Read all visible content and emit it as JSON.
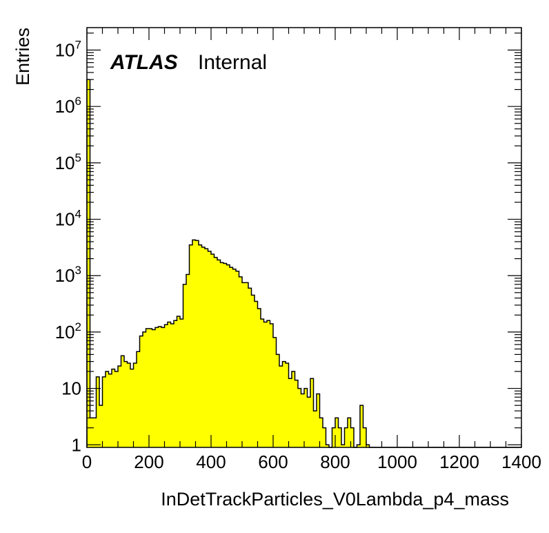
{
  "chart_data": {
    "type": "histogram",
    "xlabel": "InDetTrackParticles_V0Lambda_p4_mass",
    "ylabel": "Entries",
    "xlim": [
      0,
      1400
    ],
    "ylim": [
      0.9,
      25000000
    ],
    "ylog": true,
    "bin_width": 10,
    "bin_start": 0,
    "fill_color": "#ffff00",
    "line_color": "#000000",
    "x_ticks": [
      "0",
      "200",
      "400",
      "600",
      "800",
      "1000",
      "1200",
      "1400"
    ],
    "y_ticks": [
      {
        "value": 1,
        "base": "1",
        "exp": ""
      },
      {
        "value": 10,
        "base": "10",
        "exp": ""
      },
      {
        "value": 100,
        "base": "10",
        "exp": "2"
      },
      {
        "value": 1000,
        "base": "10",
        "exp": "3"
      },
      {
        "value": 10000,
        "base": "10",
        "exp": "4"
      },
      {
        "value": 100000,
        "base": "10",
        "exp": "5"
      },
      {
        "value": 1000000,
        "base": "10",
        "exp": "6"
      },
      {
        "value": 10000000,
        "base": "10",
        "exp": "7"
      }
    ],
    "values": [
      3000000,
      3,
      3,
      16,
      5,
      16,
      20,
      18,
      22,
      20,
      25,
      38,
      30,
      28,
      22,
      28,
      45,
      85,
      100,
      115,
      115,
      110,
      120,
      125,
      120,
      135,
      150,
      140,
      160,
      190,
      170,
      700,
      1050,
      3500,
      4300,
      4200,
      3500,
      3200,
      3000,
      2700,
      2400,
      2100,
      1900,
      1700,
      1650,
      1550,
      1400,
      1300,
      1200,
      950,
      750,
      750,
      600,
      450,
      350,
      260,
      170,
      150,
      160,
      140,
      80,
      40,
      25,
      30,
      28,
      15,
      20,
      14,
      10,
      8,
      10,
      7,
      15,
      4,
      8,
      3,
      2,
      1,
      0,
      2,
      3,
      2,
      1,
      2,
      3,
      2,
      0,
      1,
      5,
      2,
      1,
      0,
      0,
      0,
      0,
      0,
      0,
      0,
      0,
      0,
      0,
      0,
      0,
      0,
      0,
      0,
      0,
      0,
      0,
      0,
      0,
      0,
      0,
      0,
      0,
      0,
      0,
      0,
      0,
      0,
      0,
      0,
      0,
      0,
      0,
      0,
      0,
      0,
      0,
      0,
      0,
      0,
      0,
      0,
      0,
      0,
      0,
      0,
      0,
      0
    ]
  },
  "label": {
    "experiment": "ATLAS",
    "status": "Internal"
  }
}
